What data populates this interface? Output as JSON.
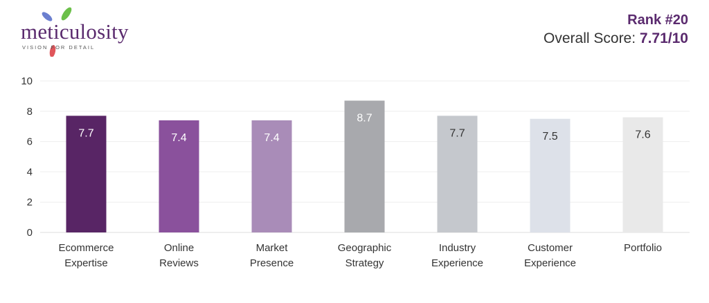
{
  "brand": {
    "name": "meticulosity",
    "tagline": "VISION FOR DETAIL",
    "colors": {
      "purple": "#5a2a6e",
      "blue": "#6b7fcf",
      "green": "#6cc04a",
      "red": "#e0555a"
    }
  },
  "header": {
    "rank": "Rank #20",
    "overall_prefix": "Overall Score: ",
    "overall_value": "7.71/10"
  },
  "chart_data": {
    "type": "bar",
    "categories": [
      [
        "Ecommerce",
        "Expertise"
      ],
      [
        "Online",
        "Reviews"
      ],
      [
        "Market",
        "Presence"
      ],
      [
        "Geographic",
        "Strategy"
      ],
      [
        "Industry",
        "Experience"
      ],
      [
        "Customer",
        "Experience"
      ],
      [
        "Portfolio"
      ]
    ],
    "values": [
      7.7,
      7.4,
      7.4,
      8.7,
      7.7,
      7.5,
      7.6
    ],
    "value_labels": [
      "7.7",
      "7.4",
      "7.4",
      "8.7",
      "7.7",
      "7.5",
      "7.6"
    ],
    "bar_colors": [
      "#582565",
      "#8a519c",
      "#a98cb8",
      "#a8a9ad",
      "#c5c8cd",
      "#dde1e9",
      "#e9e9e9"
    ],
    "label_colors": [
      "#ffffff",
      "#ffffff",
      "#ffffff",
      "#ffffff",
      "#333333",
      "#333333",
      "#333333"
    ],
    "yticks": [
      0,
      2,
      4,
      6,
      8,
      10
    ],
    "ylim": [
      0,
      10
    ],
    "grid": true,
    "title": "",
    "xlabel": "",
    "ylabel": ""
  }
}
